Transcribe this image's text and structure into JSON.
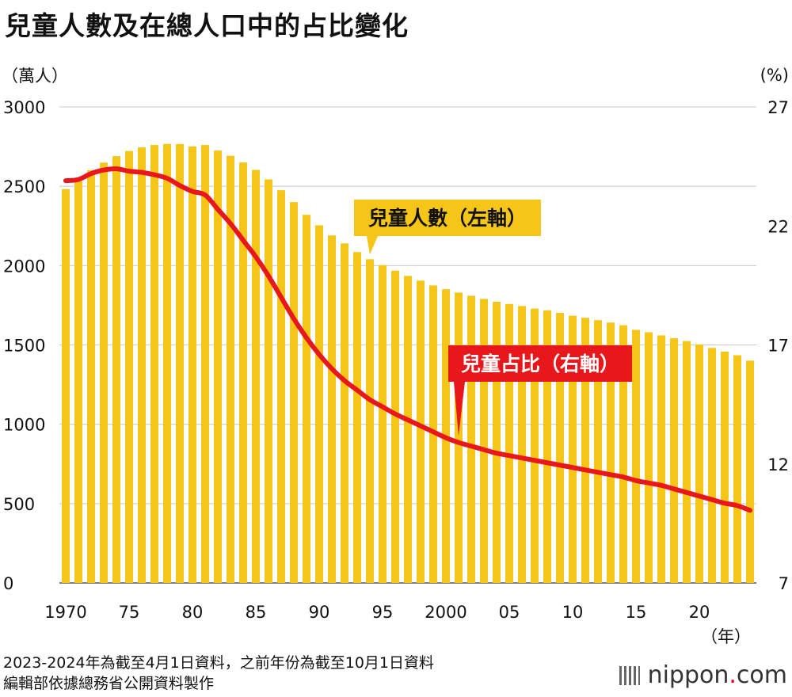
{
  "title": "兒童人數及在總人口中的占比變化",
  "left_unit": "（萬人）",
  "right_unit": "(%)",
  "x_unit": "（年）",
  "notes": [
    "2023-2024年為截至4月1日資料，之前年份為截至10月1日資料",
    "編輯部依據總務省公開資料製作"
  ],
  "logo": {
    "name": "nippon",
    "dot": ".",
    "suffix": "com"
  },
  "colors": {
    "bar": "#F5C518",
    "line": "#E8171B",
    "grid": "#c8c8c8",
    "label_bar_bg": "#F5C518",
    "label_line_bg": "#E8171B"
  },
  "chart_data": {
    "type": "bar+line",
    "categories": [
      1970,
      1971,
      1972,
      1973,
      1974,
      1975,
      1976,
      1977,
      1978,
      1979,
      1980,
      1981,
      1982,
      1983,
      1984,
      1985,
      1986,
      1987,
      1988,
      1989,
      1990,
      1991,
      1992,
      1993,
      1994,
      1995,
      1996,
      1997,
      1998,
      1999,
      2000,
      2001,
      2002,
      2003,
      2004,
      2005,
      2006,
      2007,
      2008,
      2009,
      2010,
      2011,
      2012,
      2013,
      2014,
      2015,
      2016,
      2017,
      2018,
      2019,
      2020,
      2021,
      2022,
      2023,
      2024
    ],
    "x_tick_labels": [
      {
        "year": 1970,
        "label": "1970"
      },
      {
        "year": 1975,
        "label": "75"
      },
      {
        "year": 1980,
        "label": "80"
      },
      {
        "year": 1985,
        "label": "85"
      },
      {
        "year": 1990,
        "label": "90"
      },
      {
        "year": 1995,
        "label": "95"
      },
      {
        "year": 2000,
        "label": "2000"
      },
      {
        "year": 2005,
        "label": "05"
      },
      {
        "year": 2010,
        "label": "10"
      },
      {
        "year": 2015,
        "label": "15"
      },
      {
        "year": 2020,
        "label": "20"
      }
    ],
    "series": [
      {
        "name": "兒童人數（左軸）",
        "type": "bar",
        "axis": "left",
        "values": [
          2482,
          2532,
          2601,
          2649,
          2690,
          2722,
          2745,
          2760,
          2767,
          2766,
          2751,
          2760,
          2725,
          2692,
          2650,
          2603,
          2543,
          2475,
          2400,
          2320,
          2254,
          2190,
          2140,
          2085,
          2040,
          2003,
          1968,
          1935,
          1905,
          1875,
          1851,
          1830,
          1810,
          1790,
          1772,
          1758,
          1745,
          1729,
          1718,
          1702,
          1684,
          1671,
          1656,
          1641,
          1624,
          1595,
          1580,
          1560,
          1542,
          1524,
          1503,
          1481,
          1458,
          1435,
          1401
        ]
      },
      {
        "name": "兒童占比（右軸）",
        "type": "line",
        "axis": "right",
        "values": [
          23.9,
          23.95,
          24.2,
          24.35,
          24.4,
          24.3,
          24.25,
          24.15,
          24.0,
          23.7,
          23.45,
          23.3,
          22.7,
          22.1,
          21.4,
          20.7,
          19.9,
          19.0,
          18.1,
          17.3,
          16.6,
          16.0,
          15.5,
          15.1,
          14.7,
          14.4,
          14.1,
          13.85,
          13.6,
          13.35,
          13.1,
          12.9,
          12.75,
          12.6,
          12.45,
          12.35,
          12.25,
          12.15,
          12.05,
          11.95,
          11.85,
          11.75,
          11.65,
          11.55,
          11.45,
          11.3,
          11.2,
          11.1,
          10.95,
          10.8,
          10.65,
          10.5,
          10.35,
          10.25,
          10.05
        ]
      }
    ],
    "left_axis": {
      "ylim": [
        0,
        3000
      ],
      "ticks": [
        0,
        500,
        1000,
        1500,
        2000,
        2500,
        3000
      ]
    },
    "right_axis": {
      "ylim": [
        7,
        27
      ],
      "ticks": [
        7,
        12,
        17,
        22,
        27
      ]
    },
    "annotations": [
      {
        "text": "兒童人數（左軸）",
        "series": 0,
        "year": 1994
      },
      {
        "text": "兒童占比（右軸）",
        "series": 1,
        "year": 2001
      }
    ],
    "grid": true
  }
}
